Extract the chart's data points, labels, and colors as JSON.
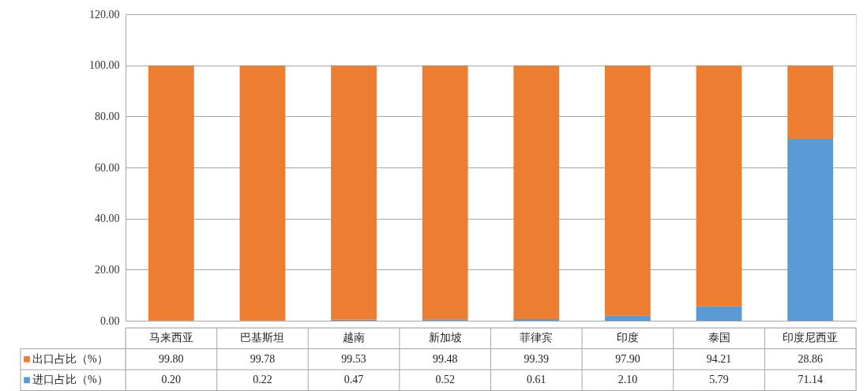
{
  "chart_data": {
    "type": "bar",
    "stacked": true,
    "categories": [
      "马来西亚",
      "巴基斯坦",
      "越南",
      "新加坡",
      "菲律宾",
      "印度",
      "泰国",
      "印度尼西亚"
    ],
    "series": [
      {
        "name": "进口占比（%）",
        "color": "#5b9bd5",
        "values": [
          0.2,
          0.22,
          0.47,
          0.52,
          0.61,
          2.1,
          5.79,
          71.14
        ],
        "value_labels": [
          "0.20",
          "0.22",
          "0.47",
          "0.52",
          "0.61",
          "2.10",
          "5.79",
          "71.14"
        ]
      },
      {
        "name": "出口占比（%）",
        "color": "#ed7d31",
        "values": [
          99.8,
          99.78,
          99.53,
          99.48,
          99.39,
          97.9,
          94.21,
          28.86
        ],
        "value_labels": [
          "99.80",
          "99.78",
          "99.53",
          "99.48",
          "99.39",
          "97.90",
          "94.21",
          "28.86"
        ]
      }
    ],
    "ylim": [
      0,
      120
    ],
    "yticks": [
      {
        "value": 0,
        "label": "0.00"
      },
      {
        "value": 20,
        "label": "20.00"
      },
      {
        "value": 40,
        "label": "40.00"
      },
      {
        "value": 60,
        "label": "60.00"
      },
      {
        "value": 80,
        "label": "80.00"
      },
      {
        "value": 100,
        "label": "100.00"
      },
      {
        "value": 120,
        "label": "120.00"
      }
    ],
    "grid": "y",
    "legend": "bottom"
  }
}
